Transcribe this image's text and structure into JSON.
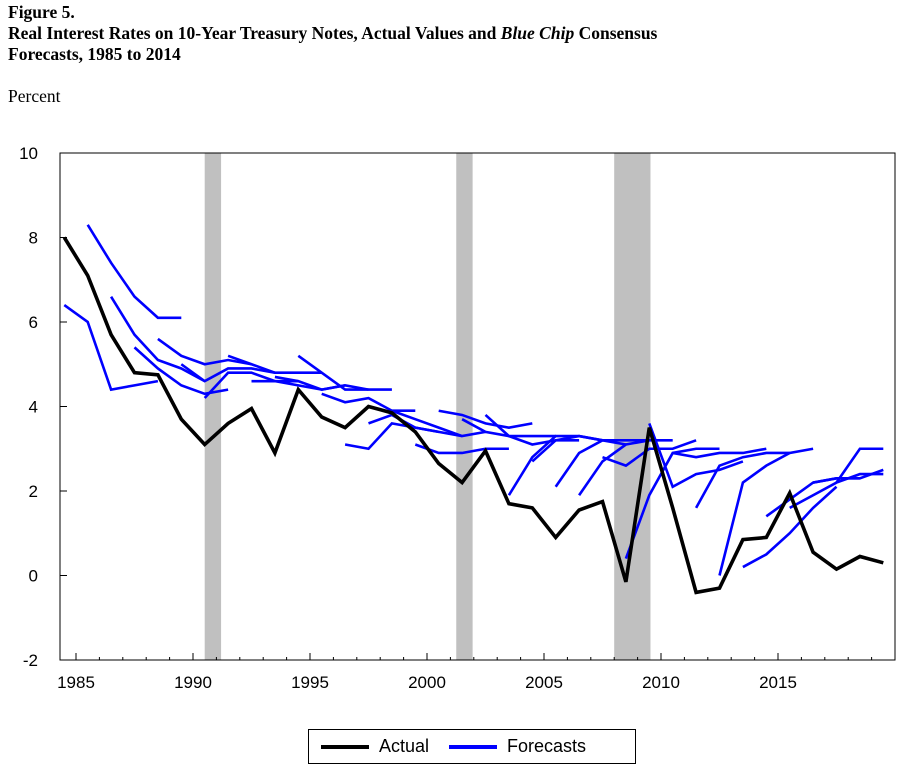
{
  "header": {
    "figure_label": "Figure 5.",
    "title_part1": "Real Interest Rates on 10-Year Treasury Notes, Actual Values and ",
    "title_italic": "Blue Chip",
    "title_part2": " Consensus",
    "title_line2": "Forecasts, 1985 to 2014",
    "unit": "Percent"
  },
  "chart_data": {
    "type": "line",
    "ylim": [
      -2,
      10
    ],
    "xlim": [
      1984.4,
      2020
    ],
    "yticks": [
      "10",
      "8",
      "6",
      "4",
      "2",
      "0",
      "-2"
    ],
    "xticks": [
      "1985",
      "1990",
      "1995",
      "2000",
      "2005",
      "2010",
      "2015"
    ],
    "grid": false,
    "legend_position": "bottom",
    "recessions": [
      [
        1990.5,
        1991.2
      ],
      [
        2001.25,
        2001.95
      ],
      [
        2008.0,
        2009.55
      ]
    ],
    "recession_color": "#c0c0c0",
    "series": [
      {
        "name": "Actual",
        "color": "#000000",
        "x": [
          1984.5,
          1985.5,
          1986.5,
          1987.5,
          1988.5,
          1989.5,
          1990.5,
          1991.5,
          1992.5,
          1993.5,
          1994.5,
          1995.5,
          1996.5,
          1997.5,
          1998.5,
          1999.5,
          2000.5,
          2001.5,
          2002.5,
          2003.5,
          2004.5,
          2005.5,
          2006.5,
          2007.5,
          2008.5,
          2009.5,
          2010.5,
          2011.5,
          2012.5,
          2013.5,
          2014.5,
          2015.5,
          2016.5,
          2017.5,
          2018.5,
          2019.5
        ],
        "values": [
          8.0,
          7.1,
          5.7,
          4.8,
          4.75,
          3.7,
          3.1,
          3.6,
          3.95,
          2.9,
          4.4,
          3.75,
          3.5,
          4.0,
          3.85,
          3.4,
          2.65,
          2.2,
          2.95,
          1.7,
          1.6,
          0.9,
          1.55,
          1.75,
          -0.15,
          3.5,
          1.6,
          -0.4,
          -0.3,
          0.85,
          0.9,
          1.95,
          0.55,
          0.15,
          0.45,
          0.3
        ]
      },
      {
        "name": "Forecasts",
        "color": "#0000ff",
        "segments": [
          {
            "start": 1984.5,
            "values": [
              6.4,
              6.0,
              4.4,
              4.5,
              4.6
            ]
          },
          {
            "start": 1985.5,
            "values": [
              8.3,
              7.4,
              6.6,
              6.1,
              6.1
            ]
          },
          {
            "start": 1986.5,
            "values": [
              6.6,
              5.7,
              5.1,
              4.9,
              4.6
            ]
          },
          {
            "start": 1987.5,
            "values": [
              5.4,
              4.9,
              4.5,
              4.3,
              4.4
            ]
          },
          {
            "start": 1988.5,
            "values": [
              5.6,
              5.2,
              5.0,
              5.1,
              5.0
            ]
          },
          {
            "start": 1989.5,
            "values": [
              5.0,
              4.6,
              4.9,
              4.9,
              4.8
            ]
          },
          {
            "start": 1990.5,
            "values": [
              4.2,
              4.8,
              4.8,
              4.6,
              4.6
            ]
          },
          {
            "start": 1991.5,
            "values": [
              5.2,
              5.0,
              4.8,
              4.8,
              4.8
            ]
          },
          {
            "start": 1992.5,
            "values": [
              4.6,
              4.6,
              4.5,
              4.4,
              4.5
            ]
          },
          {
            "start": 1993.5,
            "values": [
              4.7,
              4.6,
              4.4,
              4.5,
              4.4
            ]
          },
          {
            "start": 1994.5,
            "values": [
              5.2,
              4.8,
              4.4,
              4.4,
              4.4
            ]
          },
          {
            "start": 1995.5,
            "values": [
              4.3,
              4.1,
              4.2,
              3.9,
              3.9
            ]
          },
          {
            "start": 1996.5,
            "values": [
              3.1,
              3.0,
              3.6,
              3.5,
              3.4
            ]
          },
          {
            "start": 1997.5,
            "values": [
              3.6,
              3.8,
              3.5,
              3.4,
              3.3
            ]
          },
          {
            "start": 1998.5,
            "values": [
              3.9,
              3.7,
              3.5,
              3.3,
              3.4
            ]
          },
          {
            "start": 1999.5,
            "values": [
              3.1,
              2.9,
              2.9,
              3.0,
              3.0
            ]
          },
          {
            "start": 2000.5,
            "values": [
              3.9,
              3.8,
              3.6,
              3.5,
              3.6
            ]
          },
          {
            "start": 2001.5,
            "values": [
              3.7,
              3.4,
              3.3,
              3.3,
              3.3
            ]
          },
          {
            "start": 2002.5,
            "values": [
              3.8,
              3.3,
              3.1,
              3.2,
              3.2
            ]
          },
          {
            "start": 2003.5,
            "values": [
              1.9,
              2.8,
              3.3,
              3.3,
              3.2
            ]
          },
          {
            "start": 2004.5,
            "values": [
              2.7,
              3.2,
              3.3,
              3.2,
              3.1
            ]
          },
          {
            "start": 2005.5,
            "values": [
              2.1,
              2.9,
              3.2,
              3.2,
              3.2
            ]
          },
          {
            "start": 2006.5,
            "values": [
              1.9,
              2.7,
              3.1,
              3.2,
              3.2
            ]
          },
          {
            "start": 2007.5,
            "values": [
              2.8,
              2.6,
              3.0,
              3.0,
              3.2
            ]
          },
          {
            "start": 2008.5,
            "values": [
              0.4,
              1.9,
              2.9,
              3.0,
              3.0
            ]
          },
          {
            "start": 2009.5,
            "values": [
              3.6,
              2.1,
              2.4,
              2.5,
              2.7
            ]
          },
          {
            "start": 2010.5,
            "values": [
              2.9,
              2.8,
              2.9,
              2.9,
              3.0
            ]
          },
          {
            "start": 2011.5,
            "values": [
              1.6,
              2.6,
              2.8,
              2.9,
              2.9
            ]
          },
          {
            "start": 2012.5,
            "values": [
              0.0,
              2.2,
              2.6,
              2.9,
              3.0
            ]
          },
          {
            "start": 2013.5,
            "values": [
              0.2,
              0.5,
              1.0,
              1.6,
              2.1
            ]
          },
          {
            "start": 2014.5,
            "values": [
              1.4,
              1.8,
              2.2,
              2.3,
              2.3
            ]
          },
          {
            "start": 2015.5,
            "values": [
              1.6,
              1.9,
              2.2,
              2.4,
              2.4
            ]
          },
          {
            "start": 2016.5,
            "values": [
              2.2,
              2.3,
              2.3,
              2.5
            ]
          },
          {
            "start": 2017.5,
            "values": [
              2.2,
              3.0,
              3.0
            ]
          }
        ]
      }
    ]
  },
  "legend": {
    "actual_label": "Actual",
    "forecasts_label": "Forecasts"
  }
}
